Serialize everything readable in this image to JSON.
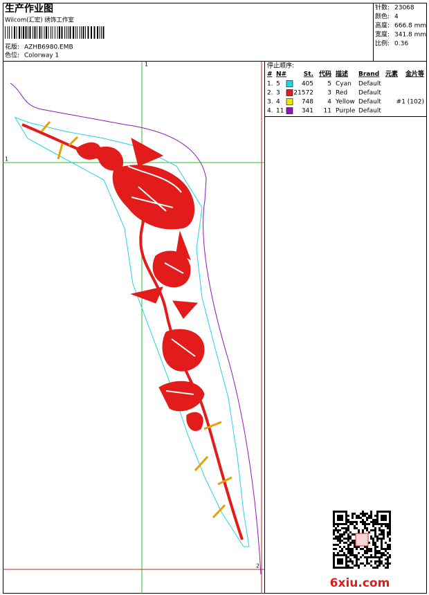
{
  "header": {
    "title": "生产作业图",
    "company": "Wilcom(汇宏) 绣饰工作室",
    "design_label": "花版:",
    "design": "AZHB6980.EMB",
    "colorway_label": "色位:",
    "colorway": "Colorway 1"
  },
  "stats": [
    {
      "label": "针数:",
      "value": "23068"
    },
    {
      "label": "颜色:",
      "value": "4"
    },
    {
      "label": "高度:",
      "value": "666.8 mm"
    },
    {
      "label": "宽度:",
      "value": "341.8 mm"
    },
    {
      "label": "比例:",
      "value": "0.36"
    }
  ],
  "sequence": {
    "title": "停止顺序:",
    "columns": [
      "#",
      "N#",
      "St.",
      "代码",
      "描述",
      "Brand",
      "元素",
      "金片等"
    ],
    "rows": [
      {
        "index": "1.",
        "needle": "5",
        "color": "#22d3e6",
        "stitches": "405",
        "code": "5",
        "description": "Cyan",
        "brand": "Default"
      },
      {
        "index": "2.",
        "needle": "3",
        "color": "#e21b1b",
        "stitches": "21572",
        "code": "3",
        "description": "Red",
        "brand": "Default"
      },
      {
        "index": "3.",
        "needle": "4",
        "color": "#f2e600",
        "stitches": "748",
        "code": "4",
        "description": "Yellow",
        "brand": "Default",
        "sequins": "#1 (102)"
      },
      {
        "index": "4.",
        "needle": "11",
        "color": "#8e16b8",
        "stitches": "341",
        "code": "11",
        "description": "Purple",
        "brand": "Default"
      }
    ]
  },
  "markers": {
    "vertical": "1",
    "horizontal": "1",
    "corner": "2"
  },
  "watermark": "6xiu.com"
}
